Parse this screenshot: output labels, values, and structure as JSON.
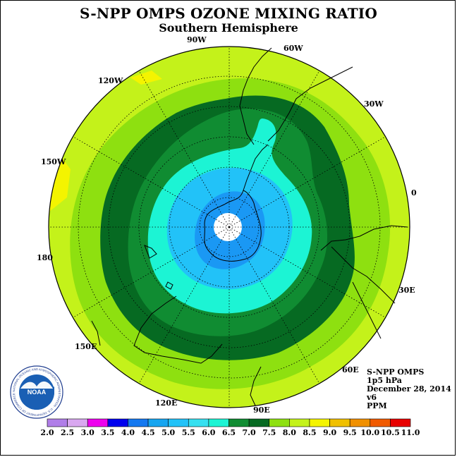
{
  "title": "S-NPP OMPS OZONE MIXING RATIO",
  "subtitle": "Southern Hemisphere",
  "longitude_labels": {
    "lon_0": "0",
    "lon_30e": "30E",
    "lon_60e": "60E",
    "lon_90e": "90E",
    "lon_120e": "120E",
    "lon_150e": "150E",
    "lon_180": "180",
    "lon_150w": "150W",
    "lon_120w": "120W",
    "lon_90w": "90W",
    "lon_60w": "60W",
    "lon_30w": "30W"
  },
  "info": {
    "instrument": "S-NPP OMPS",
    "level": "1p5 hPa",
    "date": "December 28, 2014",
    "version": "v6",
    "units": "PPM"
  },
  "logo": {
    "text": "NOAA",
    "ring_text": "NATIONAL OCEANIC AND ATMOSPHERIC ADMINISTRATION · U.S. DEPARTMENT OF COMMERCE"
  },
  "colorbar": {
    "labels": [
      "2.0",
      "2.5",
      "3.0",
      "3.5",
      "4.0",
      "4.5",
      "5.0",
      "5.5",
      "6.0",
      "6.5",
      "7.0",
      "7.5",
      "8.0",
      "8.5",
      "9.0",
      "9.5",
      "10.0",
      "10.5",
      "11.0"
    ],
    "colors": [
      "#b07ee8",
      "#d9a8f0",
      "#ee00ee",
      "#0000ee",
      "#1478f0",
      "#16a5f0",
      "#22c2f8",
      "#36e0f0",
      "#1cf4d4",
      "#108c32",
      "#066a22",
      "#8ee010",
      "#c4f21a",
      "#f4f400",
      "#f0c000",
      "#f09000",
      "#f05a00",
      "#e80000",
      "#8c5030"
    ]
  },
  "field_colors": {
    "outer": "#c4f21a",
    "ring_8_0": "#c4f21a",
    "ring_7_5": "#8ee010",
    "ring_7_0": "#066a22",
    "ring_6_5": "#108c32",
    "ring_6_0": "#1cf4d4",
    "ring_5_5": "#1cf4d4",
    "ring_5_0": "#1ebcf8",
    "ring_4_5": "#1a98f4",
    "pole": "#ffffff",
    "hotspot": "#f4f400"
  }
}
